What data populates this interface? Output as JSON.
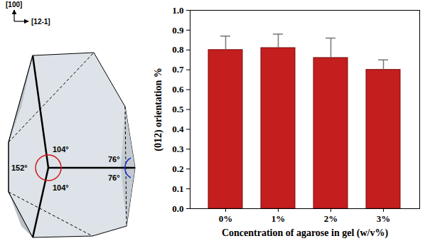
{
  "chart_data": {
    "type": "bar",
    "categories": [
      "0%",
      "1%",
      "2%",
      "3%"
    ],
    "values": [
      0.8,
      0.81,
      0.76,
      0.7
    ],
    "errors": [
      0.07,
      0.07,
      0.1,
      0.05
    ],
    "color": "#c41e1e",
    "xlabel": "Concentration of agarose in gel (w/v%)",
    "ylabel": "(012) orientation %",
    "ylim": [
      0,
      1.0
    ],
    "yticks": [
      {
        "value": 0,
        "label": "0.0"
      },
      0.1,
      0.2,
      0.3,
      0.4,
      0.5,
      0.6,
      0.7,
      0.8,
      0.9,
      {
        "value": 1.0,
        "label": "1.0"
      }
    ],
    "grid": false
  },
  "diagram": {
    "axes": [
      "[100]",
      "[12-1]"
    ],
    "angles": [
      "104°",
      "152°",
      "104°",
      "76°",
      "76°"
    ]
  }
}
